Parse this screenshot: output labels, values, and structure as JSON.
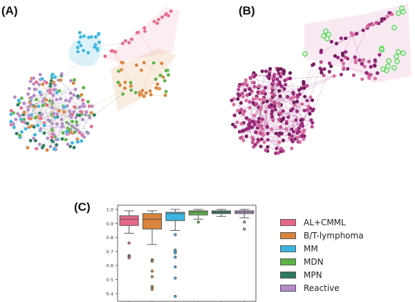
{
  "panels": {
    "a_label": "(A)",
    "b_label": "(B)",
    "c_label": "(C)"
  },
  "colors": {
    "AL+CMML": "#e8688a",
    "B/T-lymphoma": "#d9843a",
    "MM": "#3bb5e0",
    "MDN": "#5cb346",
    "MPN": "#2f7a5e",
    "Reactive": "#b48ac8",
    "network_b_node": "#9c2a7e",
    "network_b_highlight": "#59e05a"
  },
  "legend": {
    "items": [
      {
        "label": "AL+CMML",
        "color": "#e8688a"
      },
      {
        "label": "B/T-lymphoma",
        "color": "#d9843a"
      },
      {
        "label": "MM",
        "color": "#3bb5e0"
      },
      {
        "label": "MDN",
        "color": "#5cb346"
      },
      {
        "label": "MPN",
        "color": "#2f7a5e"
      },
      {
        "label": "Reactive",
        "color": "#b48ac8"
      }
    ]
  },
  "chart_data": [
    {
      "type": "network",
      "title": "(A)",
      "description": "Force-directed network graph, nodes colored by diagnosis group with shaded hulls for AL+CMML, MM and B/T-lymphoma clusters",
      "legend": [
        "AL+CMML",
        "B/T-lymphoma",
        "MM",
        "MDN",
        "MPN",
        "Reactive"
      ]
    },
    {
      "type": "network",
      "title": "(B)",
      "description": "Same network graph colored in magenta/purple shades with a subset of nodes highlighted in green rings inside a shaded pink region"
    },
    {
      "type": "box",
      "title": "(C)",
      "categories": [
        "AL+CMML",
        "B/T-lymphoma",
        "MM",
        "MDN",
        "MPN",
        "Reactive"
      ],
      "xlabel": "",
      "ylabel": "",
      "ylim": [
        0.38,
        1.02
      ],
      "yticks": [
        0.4,
        0.5,
        0.6,
        0.7,
        0.8,
        0.9,
        1.0
      ],
      "ytick_labels": [
        "0.4",
        "0.5",
        "0.6",
        "0.7",
        "0.8",
        "0.9",
        "1.0"
      ],
      "series": [
        {
          "name": "AL+CMML",
          "whisker_low": 0.83,
          "q1": 0.885,
          "median": 0.93,
          "q3": 0.955,
          "whisker_high": 0.99,
          "outliers": [
            0.76,
            0.67,
            0.665,
            0.66,
            0.655
          ]
        },
        {
          "name": "B/T-lymphoma",
          "whisker_low": 0.75,
          "q1": 0.86,
          "median": 0.93,
          "q3": 0.97,
          "whisker_high": 0.99,
          "outliers": [
            0.64,
            0.635,
            0.63,
            0.56,
            0.52,
            0.45,
            0.44,
            0.43
          ]
        },
        {
          "name": "MM",
          "whisker_low": 0.85,
          "q1": 0.92,
          "median": 0.97,
          "q3": 0.98,
          "whisker_high": 1.0,
          "outliers": [
            0.82,
            0.71,
            0.7,
            0.69,
            0.66,
            0.59,
            0.51,
            0.38
          ]
        },
        {
          "name": "MDN",
          "whisker_low": 0.93,
          "q1": 0.96,
          "median": 0.98,
          "q3": 0.99,
          "whisker_high": 1.0,
          "outliers": [
            0.91
          ]
        },
        {
          "name": "MPN",
          "whisker_low": 0.95,
          "q1": 0.97,
          "median": 0.98,
          "q3": 0.99,
          "whisker_high": 1.0,
          "outliers": []
        },
        {
          "name": "Reactive",
          "whisker_low": 0.94,
          "q1": 0.97,
          "median": 0.98,
          "q3": 0.99,
          "whisker_high": 1.0,
          "outliers": [
            0.91,
            0.86
          ]
        }
      ],
      "legend_position": "right",
      "grid": false
    }
  ]
}
